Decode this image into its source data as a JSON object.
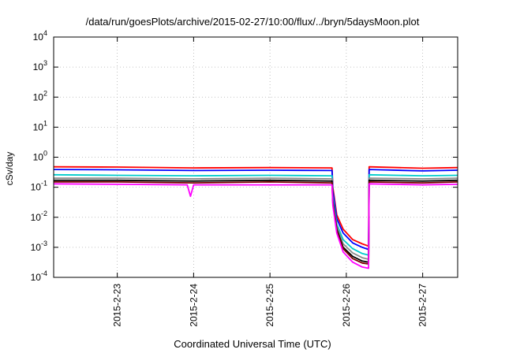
{
  "chart_data": {
    "type": "line",
    "title": "/data/run/goesPlots/archive/2015-02-27/10:00/flux/../bryn/5daysMoon.plot",
    "xlabel": "Coordinated Universal Time (UTC)",
    "ylabel": "cSv/day",
    "yscale": "log",
    "ylim": [
      0.0001,
      10000
    ],
    "xlim": [
      "2015-02-22 04:00",
      "2015-02-27 11:00"
    ],
    "grid": true,
    "x_ticks": [
      "2015-2-23",
      "2015-2-24",
      "2015-2-25",
      "2015-2-26",
      "2015-2-27"
    ],
    "y_ticks": [
      {
        "base": "10",
        "exp": "-4"
      },
      {
        "base": "10",
        "exp": "-3"
      },
      {
        "base": "10",
        "exp": "-2"
      },
      {
        "base": "10",
        "exp": "-1"
      },
      {
        "base": "10",
        "exp": "0"
      },
      {
        "base": "10",
        "exp": "1"
      },
      {
        "base": "10",
        "exp": "2"
      },
      {
        "base": "10",
        "exp": "3"
      },
      {
        "base": "10",
        "exp": "4"
      }
    ],
    "series": [
      {
        "color": "#ff0000",
        "values": [
          [
            "2015-02-22 04:00",
            0.48
          ],
          [
            "2015-02-23 00:00",
            0.47
          ],
          [
            "2015-02-24 00:00",
            0.44
          ],
          [
            "2015-02-25 00:00",
            0.45
          ],
          [
            "2015-02-25 19:30",
            0.44
          ],
          [
            "2015-02-25 19:45",
            0.1
          ],
          [
            "2015-02-25 21:00",
            0.012
          ],
          [
            "2015-02-25 23:00",
            0.004
          ],
          [
            "2015-02-26 02:00",
            0.0018
          ],
          [
            "2015-02-26 05:00",
            0.0013
          ],
          [
            "2015-02-26 07:00",
            0.0011
          ],
          [
            "2015-02-26 07:10",
            0.48
          ],
          [
            "2015-02-27 00:00",
            0.43
          ],
          [
            "2015-02-27 11:00",
            0.45
          ]
        ]
      },
      {
        "color": "#0000ff",
        "values": [
          [
            "2015-02-22 04:00",
            0.39
          ],
          [
            "2015-02-23 00:00",
            0.38
          ],
          [
            "2015-02-24 00:00",
            0.36
          ],
          [
            "2015-02-25 00:00",
            0.37
          ],
          [
            "2015-02-25 19:30",
            0.36
          ],
          [
            "2015-02-25 19:45",
            0.08
          ],
          [
            "2015-02-25 21:00",
            0.009
          ],
          [
            "2015-02-25 23:00",
            0.003
          ],
          [
            "2015-02-26 02:00",
            0.0014
          ],
          [
            "2015-02-26 05:00",
            0.001
          ],
          [
            "2015-02-26 07:00",
            0.00085
          ],
          [
            "2015-02-26 07:10",
            0.39
          ],
          [
            "2015-02-27 00:00",
            0.35
          ],
          [
            "2015-02-27 11:00",
            0.37
          ]
        ]
      },
      {
        "color": "#00cccc",
        "values": [
          [
            "2015-02-22 04:00",
            0.26
          ],
          [
            "2015-02-23 00:00",
            0.25
          ],
          [
            "2015-02-24 00:00",
            0.24
          ],
          [
            "2015-02-25 00:00",
            0.25
          ],
          [
            "2015-02-25 19:30",
            0.24
          ],
          [
            "2015-02-25 19:45",
            0.05
          ],
          [
            "2015-02-25 21:00",
            0.006
          ],
          [
            "2015-02-25 23:00",
            0.0018
          ],
          [
            "2015-02-26 02:00",
            0.0009
          ],
          [
            "2015-02-26 05:00",
            0.00062
          ],
          [
            "2015-02-26 07:00",
            0.00055
          ],
          [
            "2015-02-26 07:10",
            0.26
          ],
          [
            "2015-02-27 00:00",
            0.24
          ],
          [
            "2015-02-27 11:00",
            0.25
          ]
        ]
      },
      {
        "color": "#8a8a8a",
        "values": [
          [
            "2015-02-22 04:00",
            0.2
          ],
          [
            "2015-02-23 00:00",
            0.2
          ],
          [
            "2015-02-24 00:00",
            0.19
          ],
          [
            "2015-02-25 00:00",
            0.2
          ],
          [
            "2015-02-25 19:30",
            0.19
          ],
          [
            "2015-02-25 19:45",
            0.04
          ],
          [
            "2015-02-25 21:00",
            0.005
          ],
          [
            "2015-02-25 23:00",
            0.0013
          ],
          [
            "2015-02-26 02:00",
            0.00065
          ],
          [
            "2015-02-26 05:00",
            0.00045
          ],
          [
            "2015-02-26 07:00",
            0.0004
          ],
          [
            "2015-02-26 07:10",
            0.2
          ],
          [
            "2015-02-27 00:00",
            0.19
          ],
          [
            "2015-02-27 11:00",
            0.2
          ]
        ]
      },
      {
        "color": "#000000",
        "values": [
          [
            "2015-02-22 04:00",
            0.17
          ],
          [
            "2015-02-23 00:00",
            0.17
          ],
          [
            "2015-02-24 00:00",
            0.16
          ],
          [
            "2015-02-25 00:00",
            0.17
          ],
          [
            "2015-02-25 19:30",
            0.16
          ],
          [
            "2015-02-25 19:45",
            0.035
          ],
          [
            "2015-02-25 21:00",
            0.004
          ],
          [
            "2015-02-25 23:00",
            0.001
          ],
          [
            "2015-02-26 02:00",
            0.0005
          ],
          [
            "2015-02-26 05:00",
            0.00035
          ],
          [
            "2015-02-26 07:00",
            0.00032
          ],
          [
            "2015-02-26 07:10",
            0.17
          ],
          [
            "2015-02-27 00:00",
            0.16
          ],
          [
            "2015-02-27 11:00",
            0.17
          ]
        ]
      },
      {
        "color": "#7a0000",
        "values": [
          [
            "2015-02-22 04:00",
            0.15
          ],
          [
            "2015-02-23 00:00",
            0.15
          ],
          [
            "2015-02-24 00:00",
            0.14
          ],
          [
            "2015-02-25 00:00",
            0.15
          ],
          [
            "2015-02-25 19:30",
            0.14
          ],
          [
            "2015-02-25 19:45",
            0.03
          ],
          [
            "2015-02-25 21:00",
            0.0035
          ],
          [
            "2015-02-25 23:00",
            0.0009
          ],
          [
            "2015-02-26 02:00",
            0.00042
          ],
          [
            "2015-02-26 05:00",
            0.0003
          ],
          [
            "2015-02-26 07:00",
            0.00028
          ],
          [
            "2015-02-26 07:10",
            0.15
          ],
          [
            "2015-02-27 00:00",
            0.14
          ],
          [
            "2015-02-27 11:00",
            0.15
          ]
        ]
      },
      {
        "color": "#ff00ff",
        "values": [
          [
            "2015-02-22 04:00",
            0.13
          ],
          [
            "2015-02-23 00:00",
            0.125
          ],
          [
            "2015-02-23 22:00",
            0.12
          ],
          [
            "2015-02-23 23:00",
            0.05
          ],
          [
            "2015-02-24 00:00",
            0.12
          ],
          [
            "2015-02-25 00:00",
            0.12
          ],
          [
            "2015-02-25 19:30",
            0.12
          ],
          [
            "2015-02-25 19:45",
            0.025
          ],
          [
            "2015-02-25 21:00",
            0.003
          ],
          [
            "2015-02-25 23:00",
            0.0007
          ],
          [
            "2015-02-26 02:00",
            0.00032
          ],
          [
            "2015-02-26 05:00",
            0.00022
          ],
          [
            "2015-02-26 07:00",
            0.0002
          ],
          [
            "2015-02-26 07:10",
            0.13
          ],
          [
            "2015-02-27 00:00",
            0.12
          ],
          [
            "2015-02-27 11:00",
            0.125
          ]
        ]
      }
    ]
  }
}
